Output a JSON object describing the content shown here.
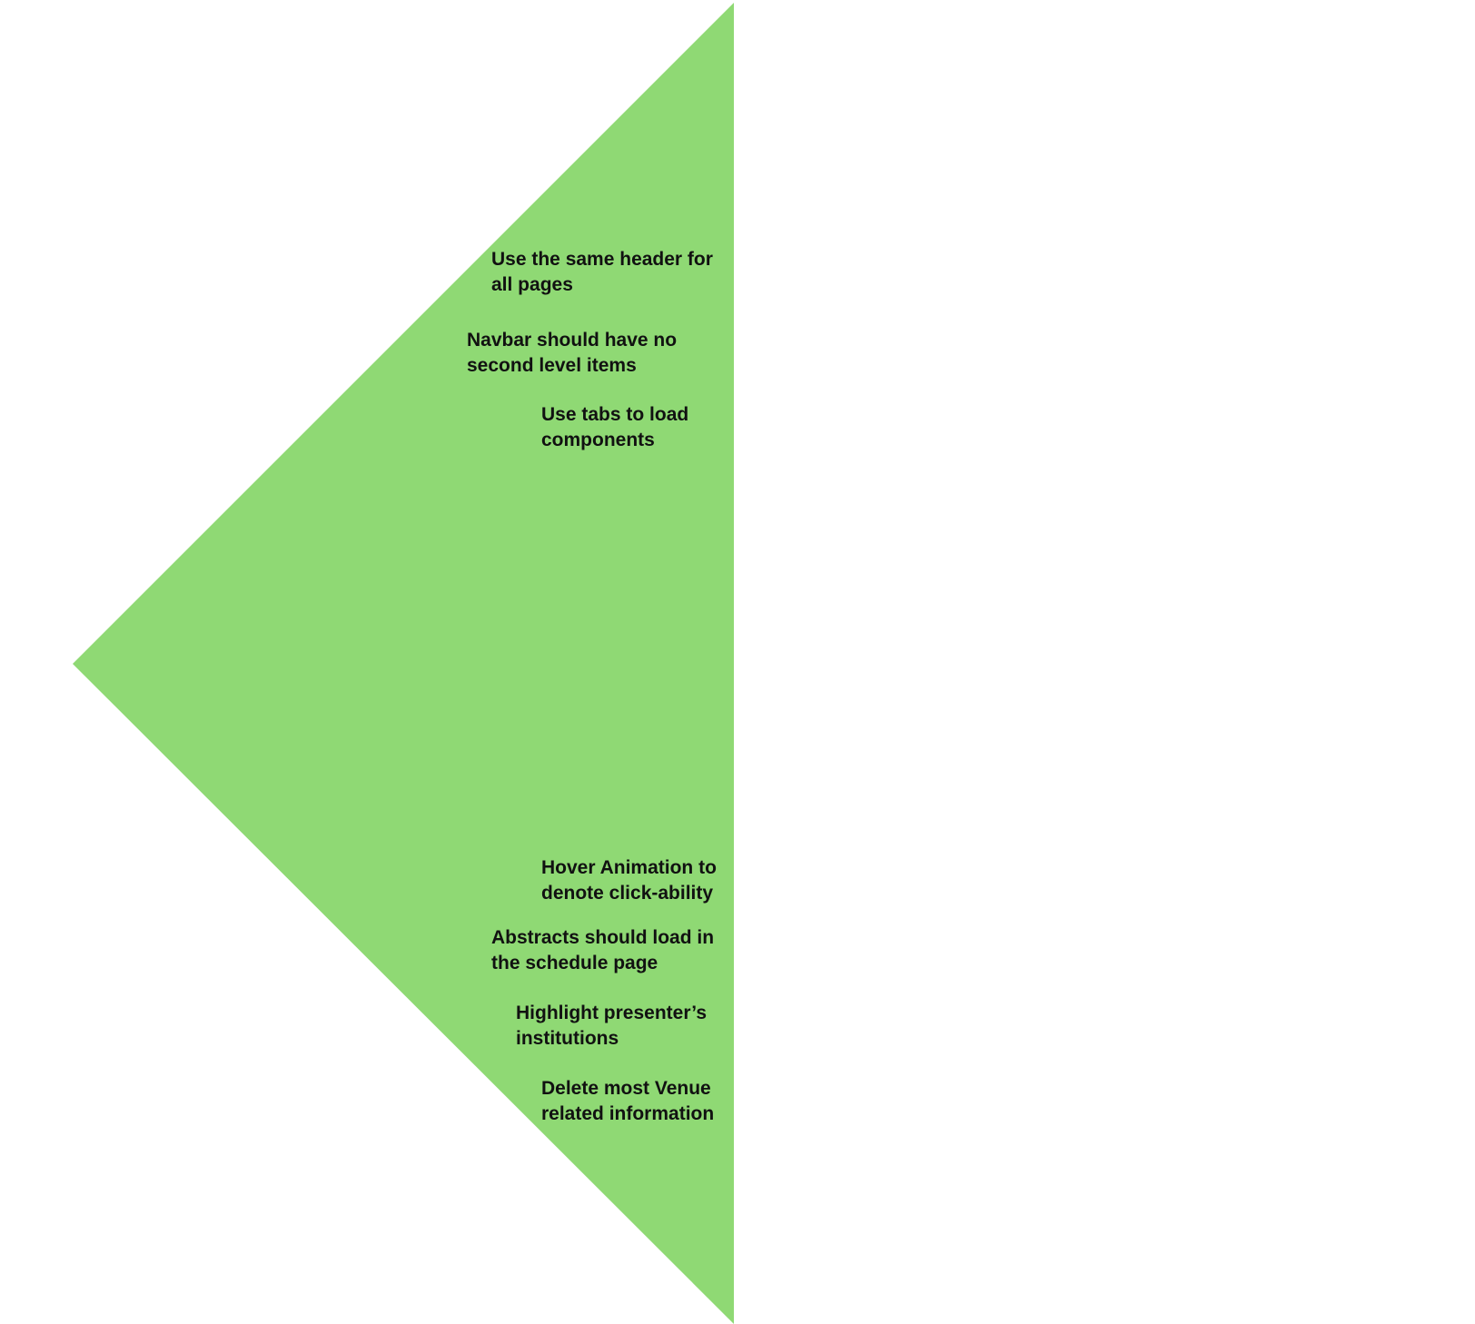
{
  "colors": {
    "background": "#ffffff",
    "triangle_fill": "#8fd974",
    "text": "#111111"
  },
  "notes": [
    {
      "line1": "Use the same header for",
      "line2": "all pages"
    },
    {
      "line1": "Navbar should have no",
      "line2": "second level items"
    },
    {
      "line1": "Use tabs to load",
      "line2": "components"
    },
    {
      "line1": "Hover Animation to",
      "line2": "denote click-ability"
    },
    {
      "line1": "Abstracts should load in",
      "line2": "the schedule page"
    },
    {
      "line1": "Highlight presenter’s",
      "line2": "institutions"
    },
    {
      "line1": "Delete most Venue",
      "line2": "related information"
    }
  ]
}
